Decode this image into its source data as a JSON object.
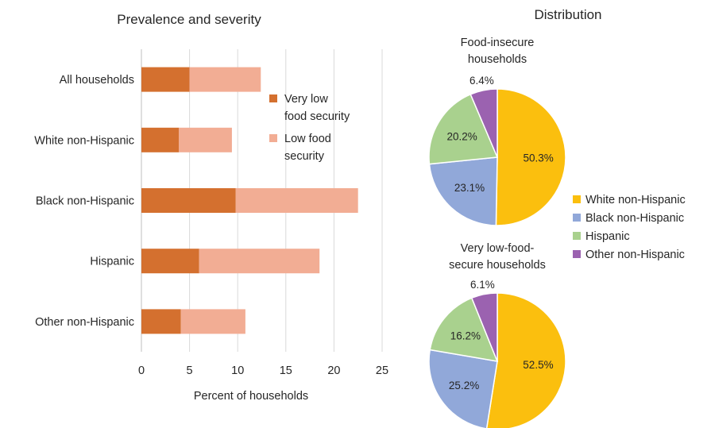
{
  "chart_data": [
    {
      "type": "bar",
      "orientation": "horizontal",
      "stacked": true,
      "title": "Prevalence and severity",
      "xlabel": "Percent of households",
      "ylabel": "",
      "xlim": [
        0,
        25
      ],
      "xticks": [
        "0",
        "5",
        "10",
        "15",
        "20",
        "25"
      ],
      "grid": true,
      "legend_position": "right",
      "categories": [
        "All households",
        "White non-Hispanic",
        "Black non-Hispanic",
        "Hispanic",
        "Other non-Hispanic"
      ],
      "series": [
        {
          "name": "Very low food security",
          "legend_lines": [
            "Very low",
            "food security"
          ],
          "color": "#d4702f",
          "values": [
            5.0,
            3.9,
            9.8,
            6.0,
            4.1
          ]
        },
        {
          "name": "Low food security",
          "legend_lines": [
            "Low food",
            "security"
          ],
          "color": "#f2ad94",
          "values": [
            7.4,
            5.5,
            12.7,
            12.5,
            6.7
          ]
        }
      ]
    },
    {
      "type": "pie",
      "group_title": "Distribution",
      "title_lines": [
        "Food-insecure",
        "households"
      ],
      "labels": [
        "White non-Hispanic",
        "Black non-Hispanic",
        "Hispanic",
        "Other non-Hispanic"
      ],
      "values": [
        50.3,
        23.1,
        20.2,
        6.4
      ],
      "value_labels": [
        "50.3%",
        "23.1%",
        "20.2%",
        "6.4%"
      ]
    },
    {
      "type": "pie",
      "title_lines": [
        "Very low-food-",
        "secure households"
      ],
      "labels": [
        "White non-Hispanic",
        "Black non-Hispanic",
        "Hispanic",
        "Other non-Hispanic"
      ],
      "values": [
        52.5,
        25.2,
        16.2,
        6.1
      ],
      "value_labels": [
        "52.5%",
        "25.2%",
        "16.2%",
        "6.1%"
      ]
    }
  ],
  "pie_legend": [
    {
      "name": "White non-Hispanic",
      "color": "#fbbf0e"
    },
    {
      "name": "Black non-Hispanic",
      "color": "#91a8d9"
    },
    {
      "name": "Hispanic",
      "color": "#a9d18e"
    },
    {
      "name": "Other non-Hispanic",
      "color": "#9b62b0"
    }
  ]
}
